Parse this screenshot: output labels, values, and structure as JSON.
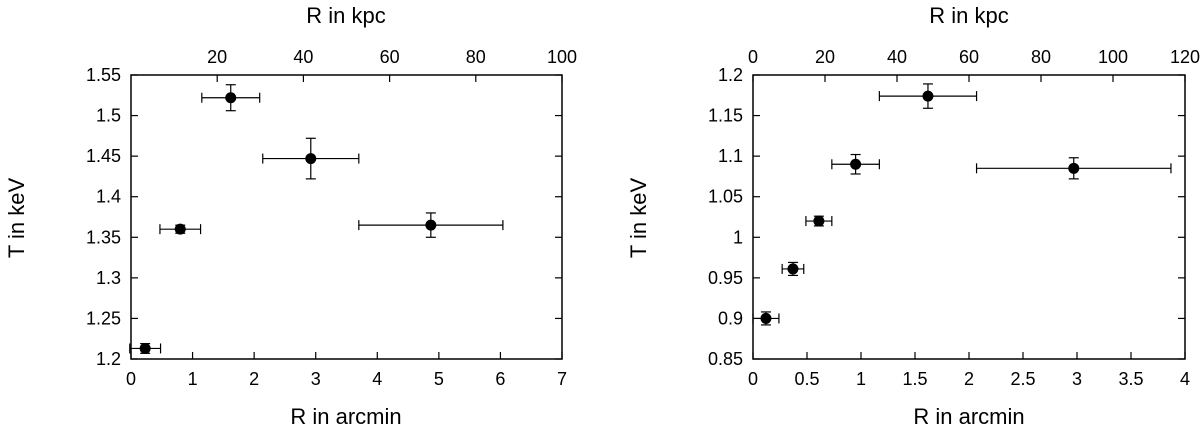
{
  "chart_data": [
    {
      "type": "scatter",
      "xlabel": "R in arcmin",
      "x2label": "R in kpc",
      "ylabel": "T in keV",
      "xlim": [
        0,
        7
      ],
      "x2lim": [
        0,
        100
      ],
      "ylim": [
        1.2,
        1.55
      ],
      "xticks": [
        "0",
        "1",
        "2",
        "3",
        "4",
        "5",
        "6",
        "7"
      ],
      "x2ticks": [
        "20",
        "40",
        "60",
        "80",
        "100"
      ],
      "yticks": [
        "1.2",
        "1.25",
        "1.3",
        "1.35",
        "1.4",
        "1.45",
        "1.5",
        "1.55"
      ],
      "points": [
        {
          "x": 0.23,
          "xerr": 0.25,
          "y": 1.213,
          "yerr": 0.006
        },
        {
          "x": 0.8,
          "xerr": 0.33,
          "y": 1.36,
          "yerr": 0.005
        },
        {
          "x": 1.62,
          "xerr": 0.47,
          "y": 1.522,
          "yerr": 0.016
        },
        {
          "x": 2.92,
          "xerr": 0.78,
          "y": 1.447,
          "yerr": 0.025
        },
        {
          "x": 4.87,
          "xerr": 1.17,
          "y": 1.365,
          "yerr": 0.015
        }
      ]
    },
    {
      "type": "scatter",
      "xlabel": "R in arcmin",
      "x2label": "R in kpc",
      "ylabel": "T in keV",
      "xlim": [
        0,
        4
      ],
      "x2lim": [
        0,
        120
      ],
      "ylim": [
        0.85,
        1.2
      ],
      "xticks": [
        "0",
        "0.5",
        "1",
        "1.5",
        "2",
        "2.5",
        "3",
        "3.5",
        "4"
      ],
      "x2ticks": [
        "0",
        "20",
        "40",
        "60",
        "80",
        "100",
        "120"
      ],
      "yticks": [
        "0.85",
        "0.9",
        "0.95",
        "1",
        "1.05",
        "1.1",
        "1.15",
        "1.2"
      ],
      "points": [
        {
          "x": 0.12,
          "xerr": 0.12,
          "y": 0.9,
          "yerr": 0.008
        },
        {
          "x": 0.37,
          "xerr": 0.1,
          "y": 0.961,
          "yerr": 0.008
        },
        {
          "x": 0.61,
          "xerr": 0.12,
          "y": 1.02,
          "yerr": 0.006
        },
        {
          "x": 0.95,
          "xerr": 0.22,
          "y": 1.09,
          "yerr": 0.012
        },
        {
          "x": 1.62,
          "xerr": 0.45,
          "y": 1.174,
          "yerr": 0.015
        },
        {
          "x": 2.97,
          "xerr": 0.9,
          "y": 1.085,
          "yerr": 0.013
        }
      ]
    }
  ]
}
